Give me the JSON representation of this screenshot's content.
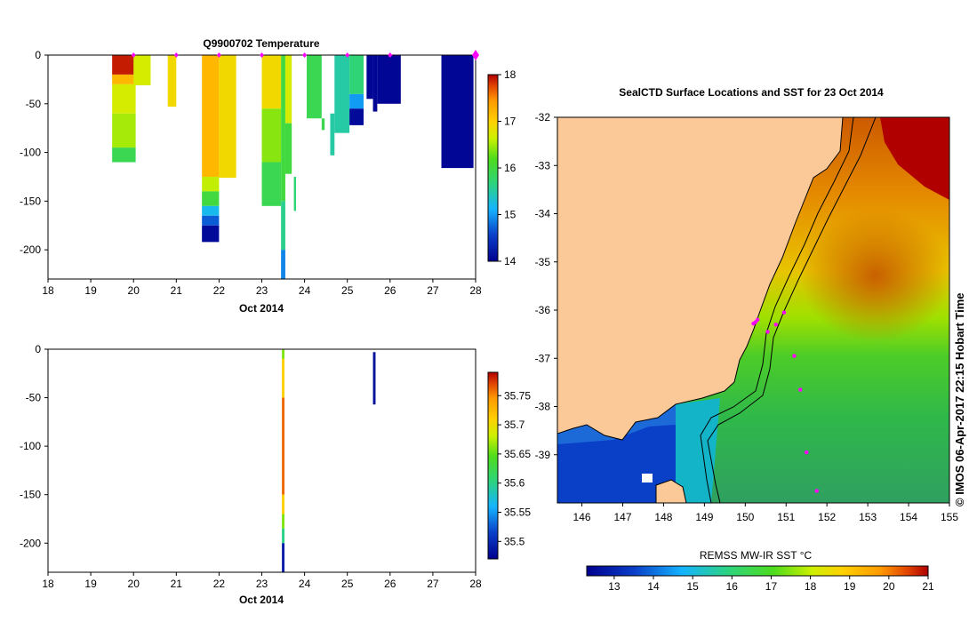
{
  "chart_data": [
    {
      "type": "heatmap",
      "title": "Q9900702  Temperature",
      "xlabel": "Oct 2014",
      "ylabel": "",
      "xlim": [
        18,
        28
      ],
      "ylim": [
        -230,
        0
      ],
      "xticks": [
        "18",
        "19",
        "20",
        "21",
        "22",
        "23",
        "24",
        "25",
        "26",
        "27",
        "28"
      ],
      "yticks": [
        "0",
        "-50",
        "-100",
        "-150",
        "-200"
      ],
      "colorbar": {
        "min": 14,
        "max": 18,
        "ticks": [
          "18",
          "17",
          "16",
          "15",
          "14"
        ],
        "tick_values": [
          18,
          17,
          16,
          15,
          14
        ]
      },
      "surface_marker_days": [
        20,
        21,
        22,
        23,
        24,
        25,
        26,
        28
      ],
      "profiles": [
        {
          "x0": 19.5,
          "x1": 20.05,
          "segments": [
            {
              "top": 0,
              "bottom": -20,
              "value": 17.9
            },
            {
              "top": -20,
              "bottom": -30,
              "value": 17.2
            },
            {
              "top": -30,
              "bottom": -60,
              "value": 16.7
            },
            {
              "top": -60,
              "bottom": -95,
              "value": 16.5
            },
            {
              "top": -95,
              "bottom": -110,
              "value": 15.9
            }
          ]
        },
        {
          "x0": 20.0,
          "x1": 20.4,
          "segments": [
            {
              "top": 0,
              "bottom": -31,
              "value": 16.7
            }
          ]
        },
        {
          "x0": 20.8,
          "x1": 21.0,
          "segments": [
            {
              "top": 0,
              "bottom": -53,
              "value": 16.9
            }
          ]
        },
        {
          "x0": 21.6,
          "x1": 22.0,
          "segments": [
            {
              "top": 0,
              "bottom": -125,
              "value": 17.2
            },
            {
              "top": -125,
              "bottom": -140,
              "value": 16.6
            },
            {
              "top": -140,
              "bottom": -155,
              "value": 16.0
            },
            {
              "top": -155,
              "bottom": -165,
              "value": 15.2
            },
            {
              "top": -165,
              "bottom": -175,
              "value": 14.7
            },
            {
              "top": -175,
              "bottom": -192,
              "value": 14.1
            }
          ]
        },
        {
          "x0": 22.0,
          "x1": 22.4,
          "segments": [
            {
              "top": 0,
              "bottom": -126,
              "value": 16.9
            }
          ]
        },
        {
          "x0": 23.0,
          "x1": 23.45,
          "segments": [
            {
              "top": 0,
              "bottom": -55,
              "value": 16.9
            },
            {
              "top": -55,
              "bottom": -110,
              "value": 16.4
            },
            {
              "top": -110,
              "bottom": -155,
              "value": 15.9
            }
          ]
        },
        {
          "x0": 23.45,
          "x1": 23.55,
          "segments": [
            {
              "top": 0,
              "bottom": -150,
              "value": 16.0
            },
            {
              "top": -150,
              "bottom": -200,
              "value": 15.6
            },
            {
              "top": -200,
              "bottom": -230,
              "value": 14.9
            }
          ]
        },
        {
          "x0": 23.55,
          "x1": 23.7,
          "segments": [
            {
              "top": 0,
              "bottom": -70,
              "value": 16.7
            },
            {
              "top": -70,
              "bottom": -122,
              "value": 16.0
            }
          ]
        },
        {
          "x0": 23.75,
          "x1": 23.8,
          "segments": [
            {
              "top": -125,
              "bottom": -160,
              "value": 15.7
            }
          ]
        },
        {
          "x0": 24.05,
          "x1": 24.4,
          "segments": [
            {
              "top": 0,
              "bottom": -65,
              "value": 15.9
            }
          ]
        },
        {
          "x0": 24.4,
          "x1": 24.47,
          "segments": [
            {
              "top": -65,
              "bottom": -77,
              "value": 15.9
            }
          ]
        },
        {
          "x0": 24.6,
          "x1": 24.7,
          "segments": [
            {
              "top": -60,
              "bottom": -103,
              "value": 15.5
            }
          ]
        },
        {
          "x0": 24.7,
          "x1": 25.05,
          "segments": [
            {
              "top": 0,
              "bottom": -80,
              "value": 15.5
            }
          ]
        },
        {
          "x0": 25.05,
          "x1": 25.38,
          "segments": [
            {
              "top": 0,
              "bottom": -40,
              "value": 15.7
            },
            {
              "top": -40,
              "bottom": -55,
              "value": 15.0
            },
            {
              "top": -55,
              "bottom": -72,
              "value": 14.1
            }
          ]
        },
        {
          "x0": 25.45,
          "x1": 25.6,
          "segments": [
            {
              "top": 0,
              "bottom": -45,
              "value": 14.05
            }
          ]
        },
        {
          "x0": 25.6,
          "x1": 25.7,
          "segments": [
            {
              "top": 0,
              "bottom": -58,
              "value": 14.05
            }
          ]
        },
        {
          "x0": 25.7,
          "x1": 26.25,
          "segments": [
            {
              "top": 0,
              "bottom": -50,
              "value": 14.05
            }
          ]
        },
        {
          "x0": 27.2,
          "x1": 27.95,
          "segments": [
            {
              "top": 0,
              "bottom": -116,
              "value": 14.05
            }
          ]
        }
      ]
    },
    {
      "type": "heatmap",
      "title": "",
      "xlabel": "Oct 2014",
      "ylabel": "",
      "xlim": [
        18,
        28
      ],
      "ylim": [
        -230,
        0
      ],
      "xticks": [
        "18",
        "19",
        "20",
        "21",
        "22",
        "23",
        "24",
        "25",
        "26",
        "27",
        "28"
      ],
      "yticks": [
        "0",
        "-50",
        "-100",
        "-150",
        "-200"
      ],
      "colorbar": {
        "min": 35.47,
        "max": 35.79,
        "ticks": [
          "35.75",
          "35.7",
          "35.65",
          "35.6",
          "35.55",
          "35.5"
        ],
        "tick_values": [
          35.75,
          35.7,
          35.65,
          35.6,
          35.55,
          35.5
        ]
      },
      "profiles": [
        {
          "x0": 23.47,
          "x1": 23.53,
          "segments": [
            {
              "top": 0,
              "bottom": -10,
              "value": 35.66
            },
            {
              "top": -10,
              "bottom": -50,
              "value": 35.71
            },
            {
              "top": -50,
              "bottom": -150,
              "value": 35.76
            },
            {
              "top": -150,
              "bottom": -170,
              "value": 35.71
            },
            {
              "top": -170,
              "bottom": -185,
              "value": 35.66
            },
            {
              "top": -185,
              "bottom": -200,
              "value": 35.6
            },
            {
              "top": -200,
              "bottom": -230,
              "value": 35.49
            }
          ]
        },
        {
          "x0": 25.6,
          "x1": 25.66,
          "segments": [
            {
              "top": -3,
              "bottom": -57,
              "value": 35.48
            }
          ]
        }
      ]
    },
    {
      "type": "heatmap",
      "title": "SealCTD Surface Locations and SST for 23 Oct 2014",
      "xlabel": "",
      "ylabel": "",
      "xlim": [
        145.4,
        155
      ],
      "ylim": [
        -40,
        -32
      ],
      "xticks": [
        "146",
        "147",
        "148",
        "149",
        "150",
        "151",
        "152",
        "153",
        "154",
        "155"
      ],
      "yticks": [
        "-32",
        "-33",
        "-34",
        "-35",
        "-36",
        "-37",
        "-38",
        "-39"
      ],
      "colorbar": {
        "label": "REMSS MW-IR SST °C",
        "min": 12.3,
        "max": 21.0,
        "ticks": [
          "13",
          "14",
          "15",
          "16",
          "17",
          "18",
          "19",
          "20",
          "21"
        ],
        "tick_values": [
          13,
          14,
          15,
          16,
          17,
          18,
          19,
          20,
          21
        ]
      },
      "surface_locations": [
        {
          "lon": 150.25,
          "lat": -36.25
        },
        {
          "lon": 150.3,
          "lat": -36.2
        },
        {
          "lon": 150.2,
          "lat": -36.28
        },
        {
          "lon": 150.55,
          "lat": -36.45
        },
        {
          "lon": 150.75,
          "lat": -36.3
        },
        {
          "lon": 150.95,
          "lat": -36.05
        },
        {
          "lon": 151.2,
          "lat": -36.95
        },
        {
          "lon": 151.35,
          "lat": -37.65
        },
        {
          "lon": 151.5,
          "lat": -38.95
        },
        {
          "lon": 151.75,
          "lat": -39.75
        }
      ],
      "sst_field_description": ""
    }
  ],
  "watermark": "© IMOS 06-Apr-2017 22:15 Hobart Time"
}
